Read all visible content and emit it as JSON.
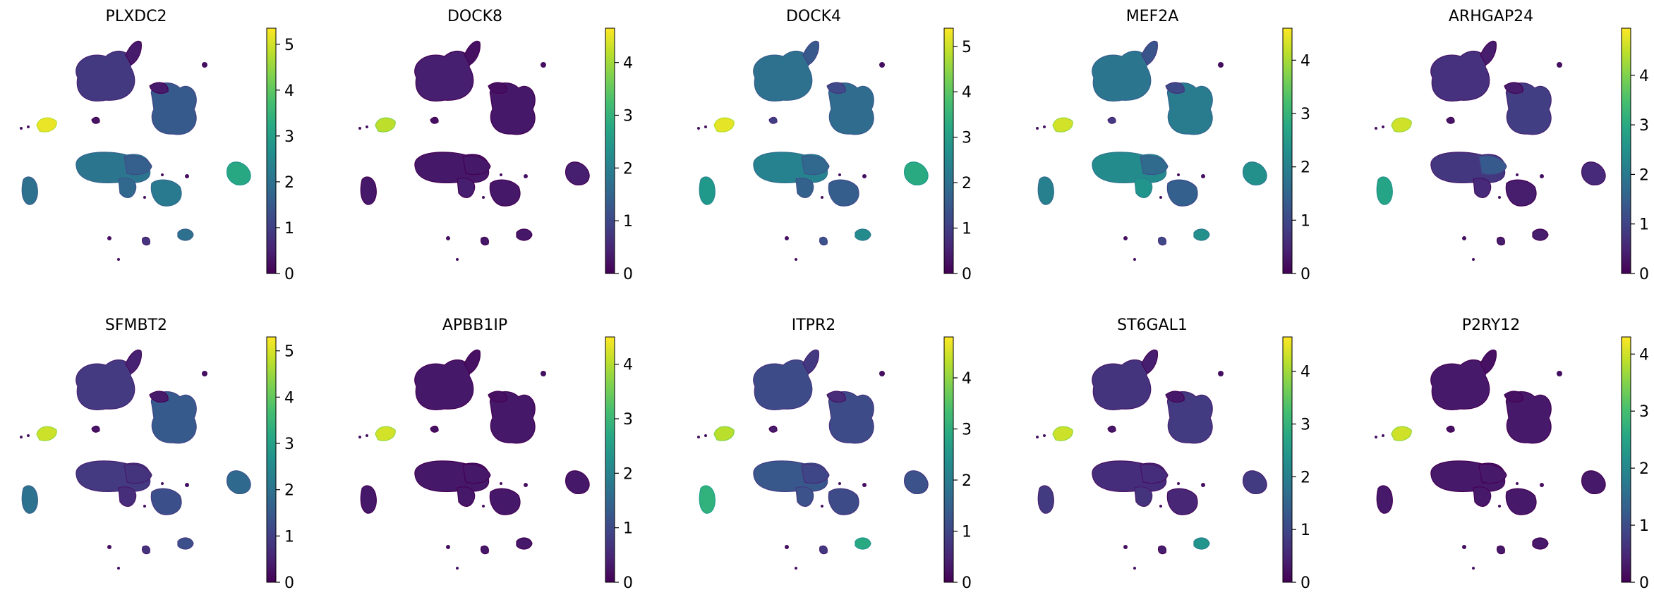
{
  "chart_data": [
    {
      "type": "scatter",
      "title": "PLXDC2",
      "colorbar": {
        "min": 0,
        "max": 5.35,
        "ticks": [
          0,
          1,
          2,
          3,
          4,
          5
        ]
      },
      "colormap": "viridis",
      "cluster_values": {
        "c1": 0.9,
        "c2": 0.4,
        "c3": 1.5,
        "c4": 0.4,
        "c5": 5.2,
        "c6": 0.3,
        "c7": 2.1,
        "c8": 1.6,
        "c9": 1.8,
        "c10": 3.2,
        "c11": 2.0,
        "c12": 2.2,
        "c13": 2.0,
        "c14": 0.8
      }
    },
    {
      "type": "scatter",
      "title": "DOCK8",
      "colorbar": {
        "min": 0,
        "max": 4.65,
        "ticks": [
          0,
          1,
          2,
          3,
          4
        ]
      },
      "colormap": "viridis",
      "cluster_values": {
        "c1": 0.4,
        "c2": 0.2,
        "c3": 0.3,
        "c4": 0.2,
        "c5": 4.2,
        "c6": 0.2,
        "c7": 0.3,
        "c8": 0.3,
        "c9": 0.4,
        "c10": 0.4,
        "c11": 0.3,
        "c12": 0.3,
        "c13": 0.3,
        "c14": 0.3
      }
    },
    {
      "type": "scatter",
      "title": "DOCK4",
      "colorbar": {
        "min": 0,
        "max": 5.4,
        "ticks": [
          0,
          1,
          2,
          3,
          4,
          5
        ]
      },
      "colormap": "viridis",
      "cluster_values": {
        "c1": 2.0,
        "c2": 1.5,
        "c3": 1.9,
        "c4": 1.2,
        "c5": 5.2,
        "c6": 1.0,
        "c7": 2.4,
        "c8": 1.8,
        "c9": 1.7,
        "c10": 3.3,
        "c11": 2.9,
        "c12": 1.6,
        "c13": 2.6,
        "c14": 1.4
      }
    },
    {
      "type": "scatter",
      "title": "MEF2A",
      "colorbar": {
        "min": 0,
        "max": 4.6,
        "ticks": [
          0,
          1,
          2,
          3,
          4
        ]
      },
      "colormap": "viridis",
      "cluster_values": {
        "c1": 1.8,
        "c2": 1.2,
        "c3": 1.9,
        "c4": 1.0,
        "c5": 4.3,
        "c6": 0.8,
        "c7": 2.2,
        "c8": 1.6,
        "c9": 2.4,
        "c10": 2.3,
        "c11": 2.0,
        "c12": 1.4,
        "c13": 2.3,
        "c14": 1.0
      }
    },
    {
      "type": "scatter",
      "title": "ARHGAP24",
      "colorbar": {
        "min": 0,
        "max": 4.95,
        "ticks": [
          0,
          1,
          2,
          3,
          4
        ]
      },
      "colormap": "viridis",
      "cluster_values": {
        "c1": 0.7,
        "c2": 0.4,
        "c3": 0.9,
        "c4": 0.4,
        "c5": 4.6,
        "c6": 0.3,
        "c7": 0.8,
        "c8": 1.4,
        "c9": 0.6,
        "c10": 0.6,
        "c11": 2.9,
        "c12": 0.4,
        "c13": 0.4,
        "c14": 0.4
      }
    },
    {
      "type": "scatter",
      "title": "SFMBT2",
      "colorbar": {
        "min": 0,
        "max": 5.3,
        "ticks": [
          0,
          1,
          2,
          3,
          4,
          5
        ]
      },
      "colormap": "viridis",
      "cluster_values": {
        "c1": 0.9,
        "c2": 0.5,
        "c3": 1.5,
        "c4": 0.4,
        "c5": 4.9,
        "c6": 0.3,
        "c7": 0.9,
        "c8": 0.8,
        "c9": 0.7,
        "c10": 1.8,
        "c11": 2.0,
        "c12": 1.3,
        "c13": 1.3,
        "c14": 0.8
      }
    },
    {
      "type": "scatter",
      "title": "APBB1IP",
      "colorbar": {
        "min": 0,
        "max": 4.5,
        "ticks": [
          0,
          1,
          2,
          3,
          4
        ]
      },
      "colormap": "viridis",
      "cluster_values": {
        "c1": 0.3,
        "c2": 0.2,
        "c3": 0.3,
        "c4": 0.2,
        "c5": 4.2,
        "c6": 0.2,
        "c7": 0.3,
        "c8": 0.3,
        "c9": 0.3,
        "c10": 0.3,
        "c11": 0.3,
        "c12": 0.3,
        "c13": 0.3,
        "c14": 0.3
      }
    },
    {
      "type": "scatter",
      "title": "ITPR2",
      "colorbar": {
        "min": 0,
        "max": 4.8,
        "ticks": [
          0,
          1,
          2,
          3,
          4
        ]
      },
      "colormap": "viridis",
      "cluster_values": {
        "c1": 1.1,
        "c2": 0.8,
        "c3": 1.1,
        "c4": 0.6,
        "c5": 4.3,
        "c6": 0.4,
        "c7": 1.3,
        "c8": 1.0,
        "c9": 1.2,
        "c10": 1.2,
        "c11": 3.1,
        "c12": 1.1,
        "c13": 2.9,
        "c14": 0.8
      }
    },
    {
      "type": "scatter",
      "title": "ST6GAL1",
      "colorbar": {
        "min": 0,
        "max": 4.65,
        "ticks": [
          0,
          1,
          2,
          3,
          4
        ]
      },
      "colormap": "viridis",
      "cluster_values": {
        "c1": 0.7,
        "c2": 0.4,
        "c3": 0.8,
        "c4": 0.3,
        "c5": 4.3,
        "c6": 0.3,
        "c7": 0.6,
        "c8": 0.6,
        "c9": 0.7,
        "c10": 0.8,
        "c11": 0.8,
        "c12": 0.5,
        "c13": 2.4,
        "c14": 0.4
      }
    },
    {
      "type": "scatter",
      "title": "P2RY12",
      "colorbar": {
        "min": 0,
        "max": 4.3,
        "ticks": [
          0,
          1,
          2,
          3,
          4
        ]
      },
      "colormap": "viridis",
      "cluster_values": {
        "c1": 0.3,
        "c2": 0.2,
        "c3": 0.3,
        "c4": 0.2,
        "c5": 4.0,
        "c6": 0.2,
        "c7": 0.3,
        "c8": 0.3,
        "c9": 0.3,
        "c10": 0.3,
        "c11": 0.3,
        "c12": 0.3,
        "c13": 0.3,
        "c14": 0.3
      }
    }
  ]
}
